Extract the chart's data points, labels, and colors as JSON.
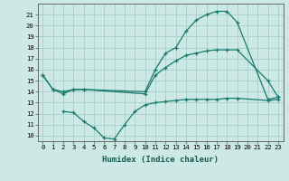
{
  "xlabel": "Humidex (Indice chaleur)",
  "background_color": "#cce9e5",
  "grid_color": "#aad4ce",
  "line_color": "#1a7a6e",
  "x_ticks": [
    0,
    1,
    2,
    3,
    4,
    5,
    6,
    7,
    8,
    9,
    10,
    11,
    12,
    13,
    14,
    15,
    16,
    17,
    18,
    19,
    20,
    21,
    22,
    23
  ],
  "y_ticks": [
    10,
    11,
    12,
    13,
    14,
    15,
    16,
    17,
    18,
    19,
    20,
    21
  ],
  "ylim": [
    9.5,
    22.0
  ],
  "xlim": [
    -0.5,
    23.5
  ],
  "curve1_x": [
    0,
    1,
    2,
    3,
    4,
    10,
    11,
    12,
    13,
    14,
    15,
    16,
    17,
    18,
    19,
    22,
    23
  ],
  "curve1_y": [
    15.5,
    14.2,
    13.8,
    14.2,
    14.2,
    14.0,
    16.0,
    17.5,
    18.0,
    19.5,
    20.5,
    21.0,
    21.3,
    21.3,
    20.3,
    13.3,
    13.5
  ],
  "curve2_x": [
    0,
    1,
    2,
    3,
    4,
    10,
    11,
    12,
    13,
    14,
    15,
    16,
    17,
    18,
    19,
    22,
    23
  ],
  "curve2_y": [
    15.5,
    14.2,
    14.0,
    14.2,
    14.2,
    13.8,
    15.5,
    16.2,
    16.8,
    17.3,
    17.5,
    17.7,
    17.8,
    17.8,
    17.8,
    15.0,
    13.5
  ],
  "curve3_x": [
    2,
    3,
    4,
    5,
    6,
    7,
    8,
    9,
    10,
    11,
    12,
    13,
    14,
    15,
    16,
    17,
    18,
    19,
    22,
    23
  ],
  "curve3_y": [
    12.2,
    12.1,
    11.3,
    10.7,
    9.8,
    9.7,
    11.0,
    12.2,
    12.8,
    13.0,
    13.1,
    13.2,
    13.3,
    13.3,
    13.3,
    13.3,
    13.4,
    13.4,
    13.2,
    13.3
  ],
  "tick_fontsize": 5.2,
  "xlabel_fontsize": 6.5
}
